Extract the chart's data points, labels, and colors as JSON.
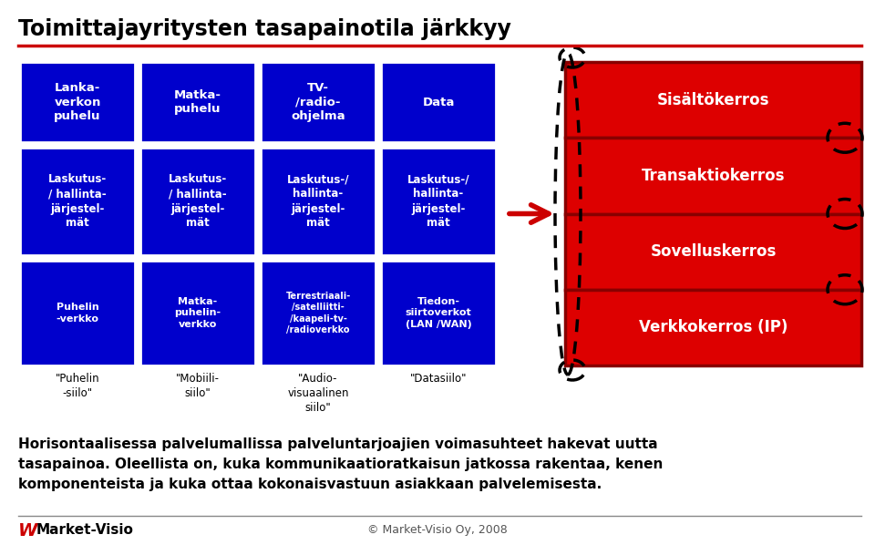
{
  "title": "Toimittajayritysten tasapainotila järkkyy",
  "title_fontsize": 17,
  "title_color": "#000000",
  "bg_color": "#ffffff",
  "blue_color": "#0000CC",
  "red_color": "#DD0000",
  "white_text": "#ffffff",
  "black_text": "#000000",
  "grid_cells": [
    {
      "label": "Lanka-\nverkon\npuhelu",
      "col": 0,
      "row": 0
    },
    {
      "label": "Matka-\npuhelu",
      "col": 1,
      "row": 0
    },
    {
      "label": "TV-\n/radio-\nohjelma",
      "col": 2,
      "row": 0
    },
    {
      "label": "Data",
      "col": 3,
      "row": 0
    },
    {
      "label": "Laskutus-\n/ hallinta-\njärjestel-\nmät",
      "col": 0,
      "row": 1
    },
    {
      "label": "Laskutus-\n/ hallinta-\njärjestel-\nmät",
      "col": 1,
      "row": 1
    },
    {
      "label": "Laskutus-/\nhallinta-\njärjestel-\nmät",
      "col": 2,
      "row": 1
    },
    {
      "label": "Laskutus-/\nhallinta-\njärjestel-\nmät",
      "col": 3,
      "row": 1
    },
    {
      "label": "Puhelin\n-verkko",
      "col": 0,
      "row": 2
    },
    {
      "label": "Matka-\npuhelin-\nverkko",
      "col": 1,
      "row": 2
    },
    {
      "label": "Terrestriaali-\n/satelliitti-\n/kaapeli-tv-\n/radioverkko",
      "col": 2,
      "row": 2
    },
    {
      "label": "Tiedon-\nsiirtoverkot\n(LAN /WAN)",
      "col": 3,
      "row": 2
    }
  ],
  "siilo_labels": [
    {
      "label": "\"Puhelin\n-siilo\"",
      "col": 0
    },
    {
      "label": "\"Mobiili-\nsiilo\"",
      "col": 1
    },
    {
      "label": "\"Audio-\nvisuaalinen\nsiilo\"",
      "col": 2
    },
    {
      "label": "\"Datasiilo\"",
      "col": 3
    }
  ],
  "right_layers": [
    "Sisältökerros",
    "Transaktiokerros",
    "Sovelluskerros",
    "Verkkokerros (IP)"
  ],
  "body_text_line1": "Horisontaalisessa palvelumallissa palveluntarjoajien voimasuhteet hakevat uutta",
  "body_text_line2": "tasapainoa. Oleellista on, kuka kommunikaatioratkaisun jatkossa rakentaa, kenen",
  "body_text_line3": "komponenteista ja kuka ottaa kokonaisvastuun asiakkaan palvelemisesta.",
  "footer_text": "© Market-Visio Oy, 2008",
  "footer_brand": "Market-Visio"
}
